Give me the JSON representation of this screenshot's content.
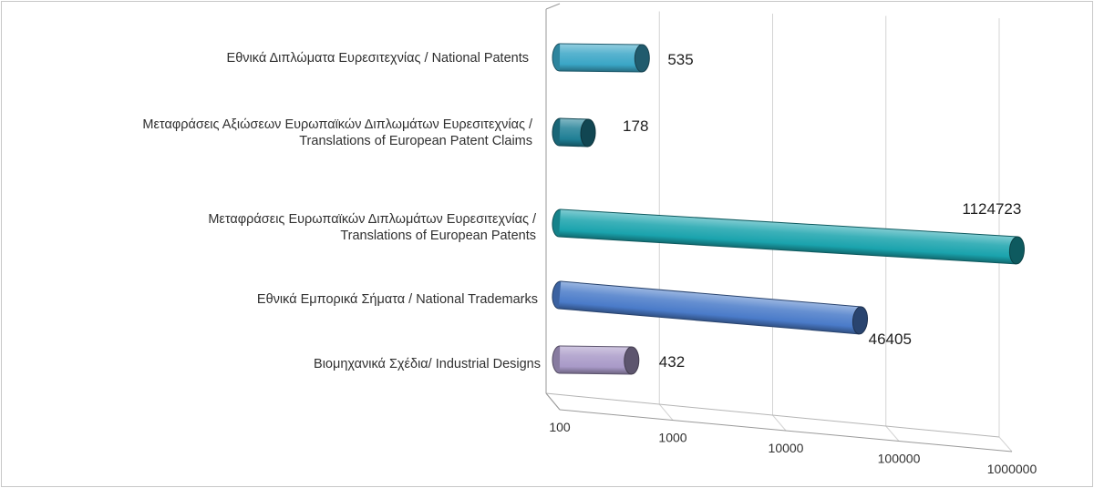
{
  "chart_data": {
    "type": "bar",
    "orientation": "horizontal",
    "style": "3d-cylinder",
    "x_scale": "log",
    "xlim": [
      100,
      1000000
    ],
    "x_ticks": [
      "100",
      "1000",
      "10000",
      "100000",
      "1000000"
    ],
    "categories": [
      [
        "Εθνικά Διπλώματα Ευρεσιτεχνίας / National Patents"
      ],
      [
        "Μεταφράσεις Αξιώσεων Ευρωπαϊκών Διπλωμάτων Ευρεσιτεχνίας /",
        "Translations of European Patent Claims"
      ],
      [
        "Μεταφράσεις Ευρωπαϊκών Διπλωμάτων Ευρεσιτεχνίας /",
        "Translations of European Patents"
      ],
      [
        "Εθνικά Εμπορικά Σήματα / National Trademarks"
      ],
      [
        "Βιομηχανικά Σχέδια/ Industrial Designs"
      ]
    ],
    "values": [
      535,
      178,
      1124723,
      46405,
      432
    ],
    "value_labels": [
      "535",
      "178",
      "1124723",
      "46405",
      "432"
    ],
    "colors": [
      "#3aa6c6",
      "#1f7f95",
      "#1aa3ad",
      "#4a7bc9",
      "#a99ac8"
    ],
    "grid": true,
    "legend": "none"
  }
}
